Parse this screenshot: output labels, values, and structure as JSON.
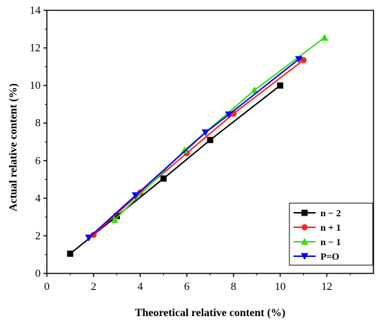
{
  "chart_data": {
    "type": "line",
    "title": "",
    "xlabel": "Theoretical relative content (%)",
    "ylabel": "Actual relative content (%)",
    "xlim": [
      0,
      14
    ],
    "ylim": [
      0,
      14
    ],
    "xticks": [
      0,
      2,
      4,
      6,
      8,
      10,
      12
    ],
    "yticks": [
      0,
      2,
      4,
      6,
      8,
      10,
      12,
      14
    ],
    "grid": false,
    "legend_position": "bottom-right",
    "series": [
      {
        "name": "n − 2",
        "color": "#000000",
        "marker": "square",
        "x": [
          1,
          3,
          5,
          7,
          10
        ],
        "y": [
          1.05,
          3.05,
          5.05,
          7.1,
          10.0
        ]
      },
      {
        "name": "n + 1",
        "color": "#ff2020",
        "marker": "circle",
        "x": [
          2,
          4,
          6,
          8,
          11
        ],
        "y": [
          2.05,
          4.3,
          6.4,
          8.5,
          11.35
        ]
      },
      {
        "name": "n − 1",
        "color": "#33dd11",
        "marker": "triangle-up",
        "x": [
          2.9,
          5.9,
          8.9,
          11.9
        ],
        "y": [
          2.85,
          6.55,
          9.75,
          12.55
        ]
      },
      {
        "name": "P=O",
        "color": "#0000ff",
        "marker": "triangle-down",
        "x": [
          1.8,
          3.8,
          6.8,
          7.8,
          10.8
        ],
        "y": [
          1.9,
          4.15,
          7.5,
          8.45,
          11.4
        ]
      }
    ]
  }
}
